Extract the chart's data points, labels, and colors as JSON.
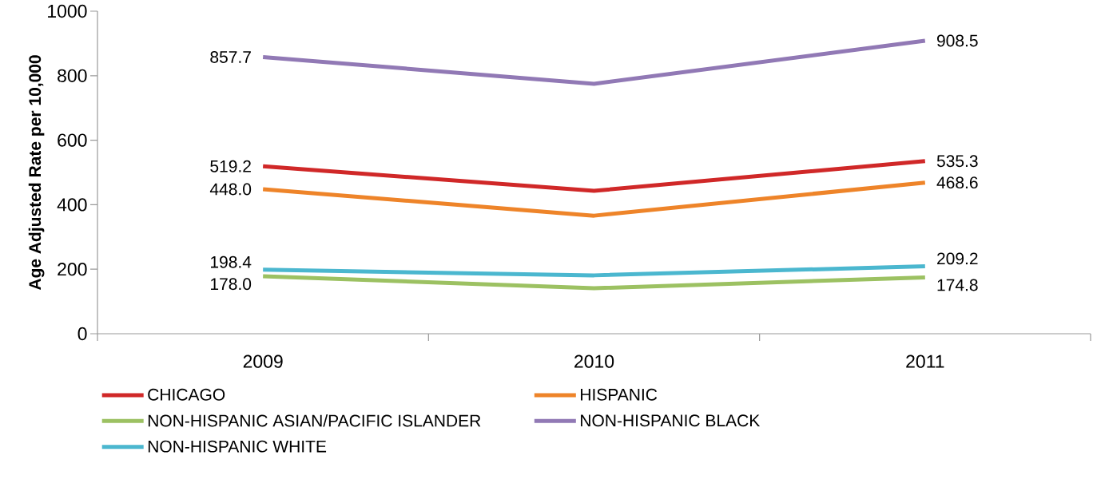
{
  "chart_data": {
    "type": "line",
    "ylabel": "Age Adjusted Rate per 10,000",
    "categories": [
      "2009",
      "2010",
      "2011"
    ],
    "series": [
      {
        "name": "CHICAGO",
        "color": "#d02828",
        "values": [
          519.2,
          443,
          535.3
        ],
        "value_labels": [
          "519.2",
          null,
          "535.3"
        ]
      },
      {
        "name": "HISPANIC",
        "color": "#ee8429",
        "values": [
          448.0,
          366,
          468.6
        ],
        "value_labels": [
          "448.0",
          null,
          "468.6"
        ]
      },
      {
        "name": "NON-HISPANIC ASIAN/PACIFIC ISLANDER",
        "color": "#9cc162",
        "values": [
          178.0,
          141,
          174.8
        ],
        "value_labels": [
          "178.0",
          null,
          "174.8"
        ]
      },
      {
        "name": "NON-HISPANIC BLACK",
        "color": "#9179b5",
        "values": [
          857.7,
          775,
          908.5
        ],
        "value_labels": [
          "857.7",
          null,
          "908.5"
        ]
      },
      {
        "name": "NON-HISPANIC WHITE",
        "color": "#4bb7cf",
        "values": [
          198.4,
          181,
          209.2
        ],
        "value_labels": [
          "198.4",
          null,
          "209.2"
        ]
      }
    ],
    "ylim": [
      0,
      1000
    ],
    "yticks": [
      0,
      200,
      400,
      600,
      800,
      1000
    ],
    "grid": false,
    "legend": "bottom",
    "marker": "none",
    "line_style": "solid"
  }
}
